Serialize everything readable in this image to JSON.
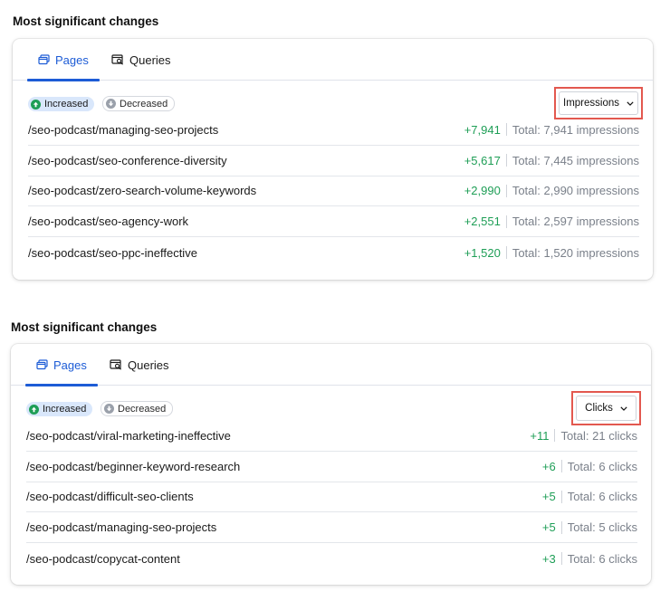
{
  "colors": {
    "accent": "#1d5cd6",
    "positive": "#1e9e56",
    "highlight": "#e3584f",
    "muted": "#7a808a"
  },
  "sections": [
    {
      "title": "Most significant changes",
      "tabs": [
        {
          "label": "Pages",
          "icon": "pages-icon",
          "active": true
        },
        {
          "label": "Queries",
          "icon": "queries-icon",
          "active": false
        }
      ],
      "filters": {
        "increased": "Increased",
        "decreased": "Decreased"
      },
      "metric_select": {
        "value": "Impressions"
      },
      "rows": [
        {
          "path": "/seo-podcast/managing-seo-projects",
          "delta": "+7,941",
          "total": "Total: 7,941 impressions"
        },
        {
          "path": "/seo-podcast/seo-conference-diversity",
          "delta": "+5,617",
          "total": "Total: 7,445 impressions"
        },
        {
          "path": "/seo-podcast/zero-search-volume-keywords",
          "delta": "+2,990",
          "total": "Total: 2,990 impressions"
        },
        {
          "path": "/seo-podcast/seo-agency-work",
          "delta": "+2,551",
          "total": "Total: 2,597 impressions"
        },
        {
          "path": "/seo-podcast/seo-ppc-ineffective",
          "delta": "+1,520",
          "total": "Total: 1,520 impressions"
        }
      ]
    },
    {
      "title": "Most significant changes",
      "tabs": [
        {
          "label": "Pages",
          "icon": "pages-icon",
          "active": true
        },
        {
          "label": "Queries",
          "icon": "queries-icon",
          "active": false
        }
      ],
      "filters": {
        "increased": "Increased",
        "decreased": "Decreased"
      },
      "metric_select": {
        "value": "Clicks"
      },
      "rows": [
        {
          "path": "/seo-podcast/viral-marketing-ineffective",
          "delta": "+11",
          "total": "Total: 21 clicks"
        },
        {
          "path": "/seo-podcast/beginner-keyword-research",
          "delta": "+6",
          "total": "Total: 6 clicks"
        },
        {
          "path": "/seo-podcast/difficult-seo-clients",
          "delta": "+5",
          "total": "Total: 6 clicks"
        },
        {
          "path": "/seo-podcast/managing-seo-projects",
          "delta": "+5",
          "total": "Total: 5 clicks"
        },
        {
          "path": "/seo-podcast/copycat-content",
          "delta": "+3",
          "total": "Total: 6 clicks"
        }
      ]
    }
  ]
}
